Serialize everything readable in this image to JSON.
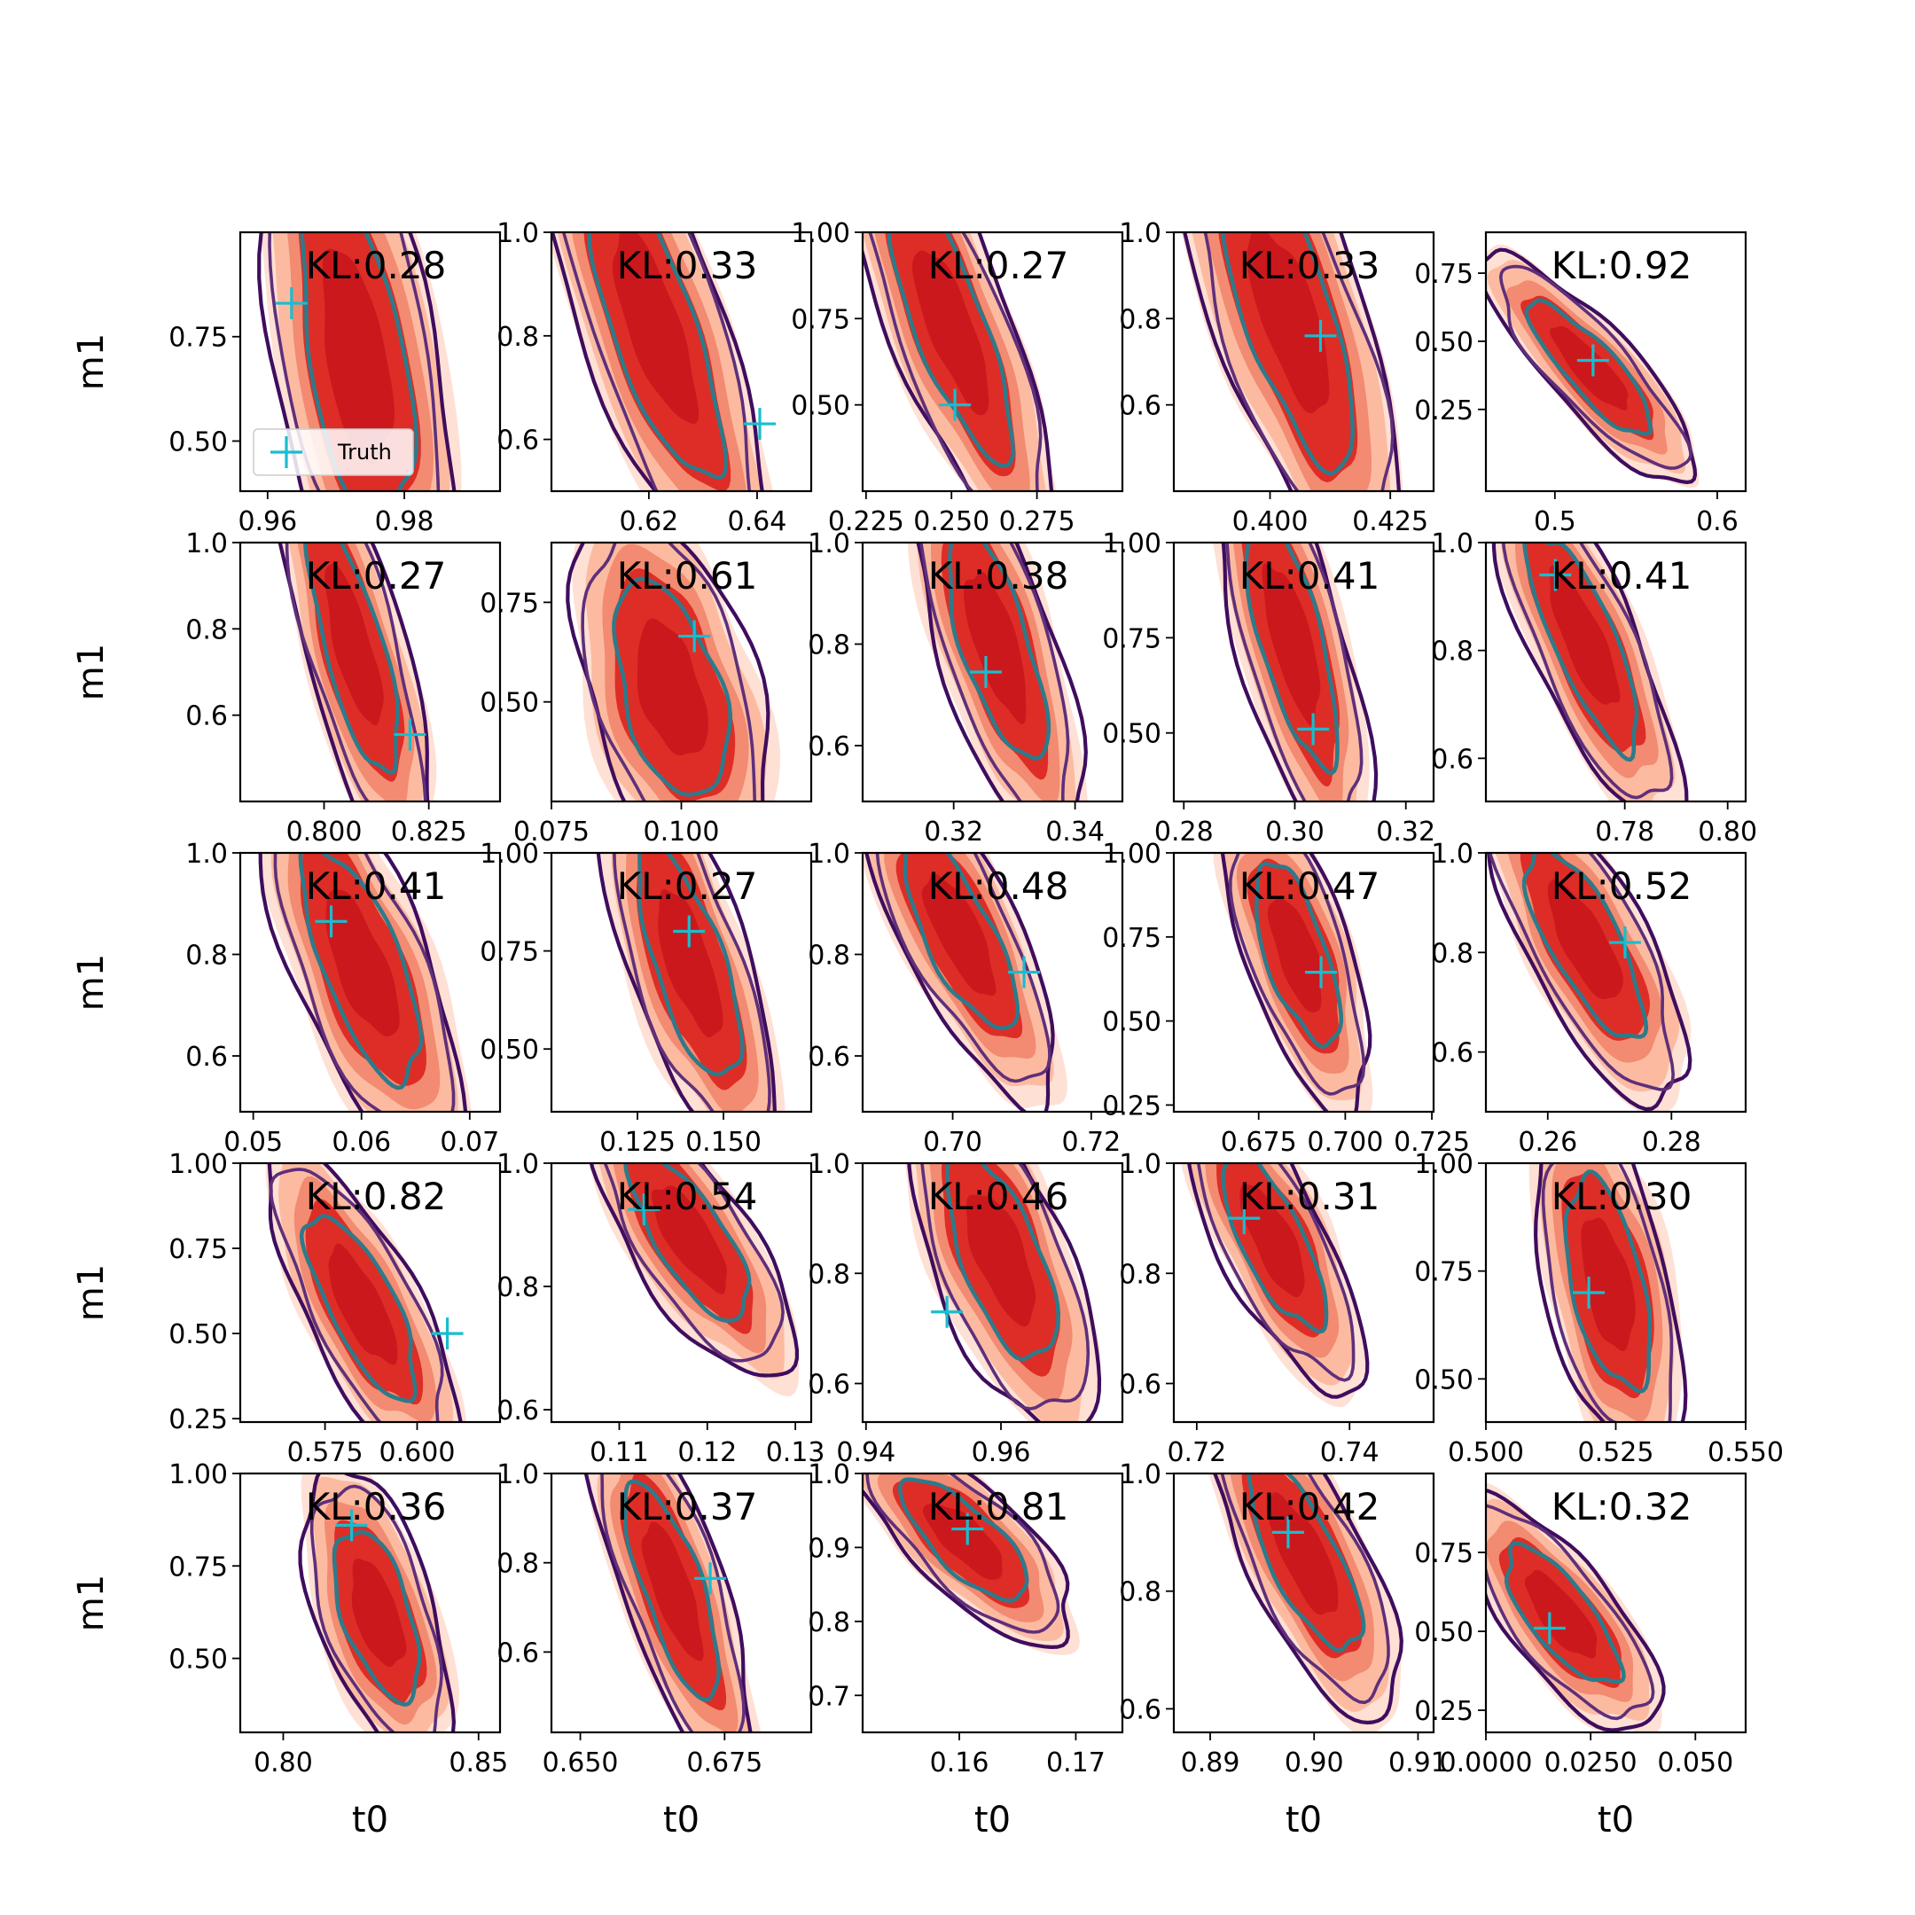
{
  "figure": {
    "legend_label": "Truth",
    "colors": {
      "fill_light": "#fcbba1",
      "fill_mid": "#f08268",
      "fill_dark": "#de2d26",
      "fill_core": "#cb181d",
      "contour_outer": "#3f0d5e",
      "contour_mid": "#5e2f7a",
      "contour_inner": "#2e7a8a",
      "truth_marker": "#17becf"
    }
  },
  "chart_data": [
    {
      "type": "contour",
      "kl": "KL:0.28",
      "xticks": [
        "0.96",
        "0.98"
      ],
      "yticks": [
        "0.50",
        "0.75"
      ],
      "xlim": [
        0.956,
        0.994
      ],
      "ylim": [
        0.38,
        1.0
      ],
      "shape": {
        "cx": 0.973,
        "cy": 0.7,
        "sx": 0.006,
        "sy": 0.3,
        "rho": -0.5
      },
      "truth": {
        "x": 0.9635,
        "y": 0.83
      },
      "ylabel": "m1",
      "legend": true
    },
    {
      "type": "contour",
      "kl": "KL:0.33",
      "xticks": [
        "0.62",
        "0.64"
      ],
      "yticks": [
        "0.6",
        "0.8",
        "1.0"
      ],
      "xlim": [
        0.602,
        0.65
      ],
      "ylim": [
        0.5,
        1.0
      ],
      "shape": {
        "cx": 0.621,
        "cy": 0.82,
        "sx": 0.009,
        "sy": 0.22,
        "rho": -0.75
      },
      "truth": {
        "x": 0.6405,
        "y": 0.63
      }
    },
    {
      "type": "contour",
      "kl": "KL:0.27",
      "xticks": [
        "0.225",
        "0.250",
        "0.275"
      ],
      "yticks": [
        "0.50",
        "0.75",
        "1.00"
      ],
      "xlim": [
        0.224,
        0.3
      ],
      "ylim": [
        0.25,
        1.0
      ],
      "shape": {
        "cx": 0.25,
        "cy": 0.72,
        "sx": 0.013,
        "sy": 0.28,
        "rho": -0.78
      },
      "truth": {
        "x": 0.251,
        "y": 0.5
      }
    },
    {
      "type": "contour",
      "kl": "KL:0.33",
      "xticks": [
        "0.400",
        "0.425"
      ],
      "yticks": [
        "0.6",
        "0.8",
        "1.0"
      ],
      "xlim": [
        0.38,
        0.434
      ],
      "ylim": [
        0.4,
        1.0
      ],
      "shape": {
        "cx": 0.404,
        "cy": 0.8,
        "sx": 0.01,
        "sy": 0.25,
        "rho": -0.7
      },
      "truth": {
        "x": 0.4105,
        "y": 0.76
      }
    },
    {
      "type": "contour",
      "kl": "KL:0.92",
      "xticks": [
        "0.5",
        "0.6"
      ],
      "yticks": [
        "0.25",
        "0.50",
        "0.75"
      ],
      "xlim": [
        0.4575,
        0.6175
      ],
      "ylim": [
        -0.05,
        0.9
      ],
      "shape": {
        "cx": 0.522,
        "cy": 0.4,
        "sx": 0.028,
        "sy": 0.18,
        "rho": -0.85
      },
      "truth": {
        "x": 0.5235,
        "y": 0.43
      }
    },
    {
      "type": "contour",
      "kl": "KL:0.27",
      "xticks": [
        "0.800",
        "0.825"
      ],
      "yticks": [
        "0.6",
        "0.8",
        "1.0"
      ],
      "xlim": [
        0.78,
        0.842
      ],
      "ylim": [
        0.4,
        1.0
      ],
      "shape": {
        "cx": 0.807,
        "cy": 0.76,
        "sx": 0.008,
        "sy": 0.22,
        "rho": -0.75
      },
      "truth": {
        "x": 0.8205,
        "y": 0.555
      },
      "ylabel": "m1"
    },
    {
      "type": "contour",
      "kl": "KL:0.61",
      "xticks": [
        "0.075",
        "0.100"
      ],
      "yticks": [
        "0.50",
        "0.75"
      ],
      "xlim": [
        0.075,
        0.125
      ],
      "ylim": [
        0.25,
        0.9
      ],
      "shape": {
        "cx": 0.098,
        "cy": 0.53,
        "sx": 0.008,
        "sy": 0.2,
        "rho": -0.45
      },
      "truth": {
        "x": 0.1025,
        "y": 0.665
      }
    },
    {
      "type": "contour",
      "kl": "KL:0.38",
      "xticks": [
        "0.32",
        "0.34"
      ],
      "yticks": [
        "0.6",
        "0.8",
        "1.0"
      ],
      "xlim": [
        0.305,
        0.3478
      ],
      "ylim": [
        0.49,
        1.0
      ],
      "shape": {
        "cx": 0.327,
        "cy": 0.8,
        "sx": 0.006,
        "sy": 0.17,
        "rho": -0.7
      },
      "truth": {
        "x": 0.3253,
        "y": 0.745
      }
    },
    {
      "type": "contour",
      "kl": "KL:0.41",
      "xticks": [
        "0.28",
        "0.30",
        "0.32"
      ],
      "yticks": [
        "0.50",
        "0.75",
        "1.00"
      ],
      "xlim": [
        0.2782,
        0.325
      ],
      "ylim": [
        0.32,
        1.0
      ],
      "shape": {
        "cx": 0.2995,
        "cy": 0.74,
        "sx": 0.006,
        "sy": 0.24,
        "rho": -0.7
      },
      "truth": {
        "x": 0.3033,
        "y": 0.51
      }
    },
    {
      "type": "contour",
      "kl": "KL:0.41",
      "xticks": [
        "0.78",
        "0.80"
      ],
      "yticks": [
        "0.6",
        "0.8",
        "1.0"
      ],
      "xlim": [
        0.753,
        0.8035
      ],
      "ylim": [
        0.52,
        1.0
      ],
      "shape": {
        "cx": 0.772,
        "cy": 0.82,
        "sx": 0.008,
        "sy": 0.15,
        "rho": -0.8
      },
      "truth": {
        "x": 0.7665,
        "y": 0.94
      }
    },
    {
      "type": "contour",
      "kl": "KL:0.41",
      "xticks": [
        "0.05",
        "0.06",
        "0.07"
      ],
      "yticks": [
        "0.6",
        "0.8",
        "1.0"
      ],
      "xlim": [
        0.0488,
        0.0728
      ],
      "ylim": [
        0.49,
        1.0
      ],
      "shape": {
        "cx": 0.06,
        "cy": 0.78,
        "sx": 0.004,
        "sy": 0.17,
        "rho": -0.7
      },
      "truth": {
        "x": 0.0572,
        "y": 0.865
      },
      "ylabel": "m1"
    },
    {
      "type": "contour",
      "kl": "KL:0.27",
      "xticks": [
        "0.125",
        "0.150"
      ],
      "yticks": [
        "0.50",
        "0.75",
        "1.00"
      ],
      "xlim": [
        0.1,
        0.1755
      ],
      "ylim": [
        0.34,
        1.0
      ],
      "shape": {
        "cx": 0.14,
        "cy": 0.72,
        "sx": 0.011,
        "sy": 0.22,
        "rho": -0.7
      },
      "truth": {
        "x": 0.14,
        "y": 0.8
      }
    },
    {
      "type": "contour",
      "kl": "KL:0.48",
      "xticks": [
        "0.70",
        "0.72"
      ],
      "yticks": [
        "0.6",
        "0.8",
        "1.0"
      ],
      "xlim": [
        0.687,
        0.7245
      ],
      "ylim": [
        0.49,
        1.0
      ],
      "shape": {
        "cx": 0.701,
        "cy": 0.84,
        "sx": 0.006,
        "sy": 0.14,
        "rho": -0.75
      },
      "truth": {
        "x": 0.7103,
        "y": 0.765
      }
    },
    {
      "type": "contour",
      "kl": "KL:0.47",
      "xticks": [
        "0.675",
        "0.700",
        "0.725"
      ],
      "yticks": [
        "0.25",
        "0.50",
        "0.75",
        "1.00"
      ],
      "xlim": [
        0.6505,
        0.7255
      ],
      "ylim": [
        0.23,
        1.0
      ],
      "shape": {
        "cx": 0.686,
        "cy": 0.7,
        "sx": 0.009,
        "sy": 0.2,
        "rho": -0.65
      },
      "truth": {
        "x": 0.693,
        "y": 0.645
      }
    },
    {
      "type": "contour",
      "kl": "KL:0.52",
      "xticks": [
        "0.26",
        "0.28"
      ],
      "yticks": [
        "0.6",
        "0.8",
        "1.0"
      ],
      "xlim": [
        0.25,
        0.292
      ],
      "ylim": [
        0.48,
        1.0
      ],
      "shape": {
        "cx": 0.266,
        "cy": 0.82,
        "sx": 0.007,
        "sy": 0.14,
        "rho": -0.75
      },
      "truth": {
        "x": 0.2725,
        "y": 0.82
      }
    },
    {
      "type": "contour",
      "kl": "KL:0.82",
      "xticks": [
        "0.575",
        "0.600"
      ],
      "yticks": [
        "0.25",
        "0.50",
        "0.75",
        "1.00"
      ],
      "xlim": [
        0.552,
        0.6225
      ],
      "ylim": [
        0.24,
        1.0
      ],
      "shape": {
        "cx": 0.585,
        "cy": 0.58,
        "sx": 0.011,
        "sy": 0.2,
        "rho": -0.75
      },
      "truth": {
        "x": 0.6082,
        "y": 0.5
      },
      "ylabel": "m1"
    },
    {
      "type": "contour",
      "kl": "KL:0.54",
      "xticks": [
        "0.11",
        "0.12",
        "0.13"
      ],
      "yticks": [
        "0.6",
        "0.8",
        "1.0"
      ],
      "xlim": [
        0.1023,
        0.1318
      ],
      "ylim": [
        0.58,
        1.0
      ],
      "shape": {
        "cx": 0.118,
        "cy": 0.88,
        "sx": 0.005,
        "sy": 0.1,
        "rho": -0.75
      },
      "truth": {
        "x": 0.1128,
        "y": 0.925
      }
    },
    {
      "type": "contour",
      "kl": "KL:0.46",
      "xticks": [
        "0.94",
        "0.96"
      ],
      "yticks": [
        "0.6",
        "0.8",
        "1.0"
      ],
      "xlim": [
        0.9395,
        0.978
      ],
      "ylim": [
        0.53,
        1.0
      ],
      "shape": {
        "cx": 0.96,
        "cy": 0.83,
        "sx": 0.006,
        "sy": 0.14,
        "rho": -0.65
      },
      "truth": {
        "x": 0.952,
        "y": 0.73
      }
    },
    {
      "type": "contour",
      "kl": "KL:0.31",
      "xticks": [
        "0.72",
        "0.74"
      ],
      "yticks": [
        "0.6",
        "0.8",
        "1.0"
      ],
      "xlim": [
        0.717,
        0.751
      ],
      "ylim": [
        0.53,
        1.0
      ],
      "shape": {
        "cx": 0.73,
        "cy": 0.86,
        "sx": 0.005,
        "sy": 0.12,
        "rho": -0.75
      },
      "truth": {
        "x": 0.7262,
        "y": 0.9
      }
    },
    {
      "type": "contour",
      "kl": "KL:0.30",
      "xticks": [
        "0.500",
        "0.525",
        "0.550"
      ],
      "yticks": [
        "0.50",
        "0.75",
        "1.00"
      ],
      "xlim": [
        0.5,
        0.55
      ],
      "ylim": [
        0.4,
        1.0
      ],
      "shape": {
        "cx": 0.5235,
        "cy": 0.72,
        "sx": 0.006,
        "sy": 0.18,
        "rho": -0.5
      },
      "truth": {
        "x": 0.5198,
        "y": 0.7
      }
    },
    {
      "type": "contour",
      "kl": "KL:0.36",
      "xticks": [
        "0.80",
        "0.85"
      ],
      "yticks": [
        "0.50",
        "0.75",
        "1.00"
      ],
      "xlim": [
        0.789,
        0.8555
      ],
      "ylim": [
        0.3,
        1.0
      ],
      "shape": {
        "cx": 0.824,
        "cy": 0.62,
        "sx": 0.008,
        "sy": 0.17,
        "rho": -0.55
      },
      "truth": {
        "x": 0.8175,
        "y": 0.86
      },
      "ylabel": "m1"
    },
    {
      "type": "contour",
      "kl": "KL:0.37",
      "xticks": [
        "0.650",
        "0.675"
      ],
      "yticks": [
        "0.6",
        "0.8",
        "1.0"
      ],
      "xlim": [
        0.645,
        0.69
      ],
      "ylim": [
        0.42,
        1.0
      ],
      "shape": {
        "cx": 0.666,
        "cy": 0.74,
        "sx": 0.006,
        "sy": 0.18,
        "rho": -0.75
      },
      "truth": {
        "x": 0.6725,
        "y": 0.765
      }
    },
    {
      "type": "contour",
      "kl": "KL:0.81",
      "xticks": [
        "0.16",
        "0.17"
      ],
      "yticks": [
        "0.7",
        "0.8",
        "0.9",
        "1.0"
      ],
      "xlim": [
        0.1517,
        0.174
      ],
      "ylim": [
        0.65,
        1.0
      ],
      "shape": {
        "cx": 0.1605,
        "cy": 0.91,
        "sx": 0.004,
        "sy": 0.06,
        "rho": -0.75
      },
      "truth": {
        "x": 0.1607,
        "y": 0.925
      }
    },
    {
      "type": "contour",
      "kl": "KL:0.42",
      "xticks": [
        "0.89",
        "0.90",
        "0.91"
      ],
      "yticks": [
        "0.6",
        "0.8",
        "1.0"
      ],
      "xlim": [
        0.8865,
        0.9115
      ],
      "ylim": [
        0.56,
        1.0
      ],
      "shape": {
        "cx": 0.899,
        "cy": 0.86,
        "sx": 0.004,
        "sy": 0.12,
        "rho": -0.75
      },
      "truth": {
        "x": 0.8975,
        "y": 0.9
      }
    },
    {
      "type": "contour",
      "kl": "KL:0.32",
      "xticks": [
        "0.0000",
        "0.0250",
        "0.050"
      ],
      "yticks": [
        "0.25",
        "0.50",
        "0.75"
      ],
      "xlim": [
        0.0,
        0.062
      ],
      "ylim": [
        0.18,
        1.0
      ],
      "shape": {
        "cx": 0.018,
        "cy": 0.55,
        "sx": 0.01,
        "sy": 0.16,
        "rho": -0.75
      },
      "truth": {
        "x": 0.0152,
        "y": 0.51
      }
    }
  ],
  "xlabel_bottom": "t0"
}
